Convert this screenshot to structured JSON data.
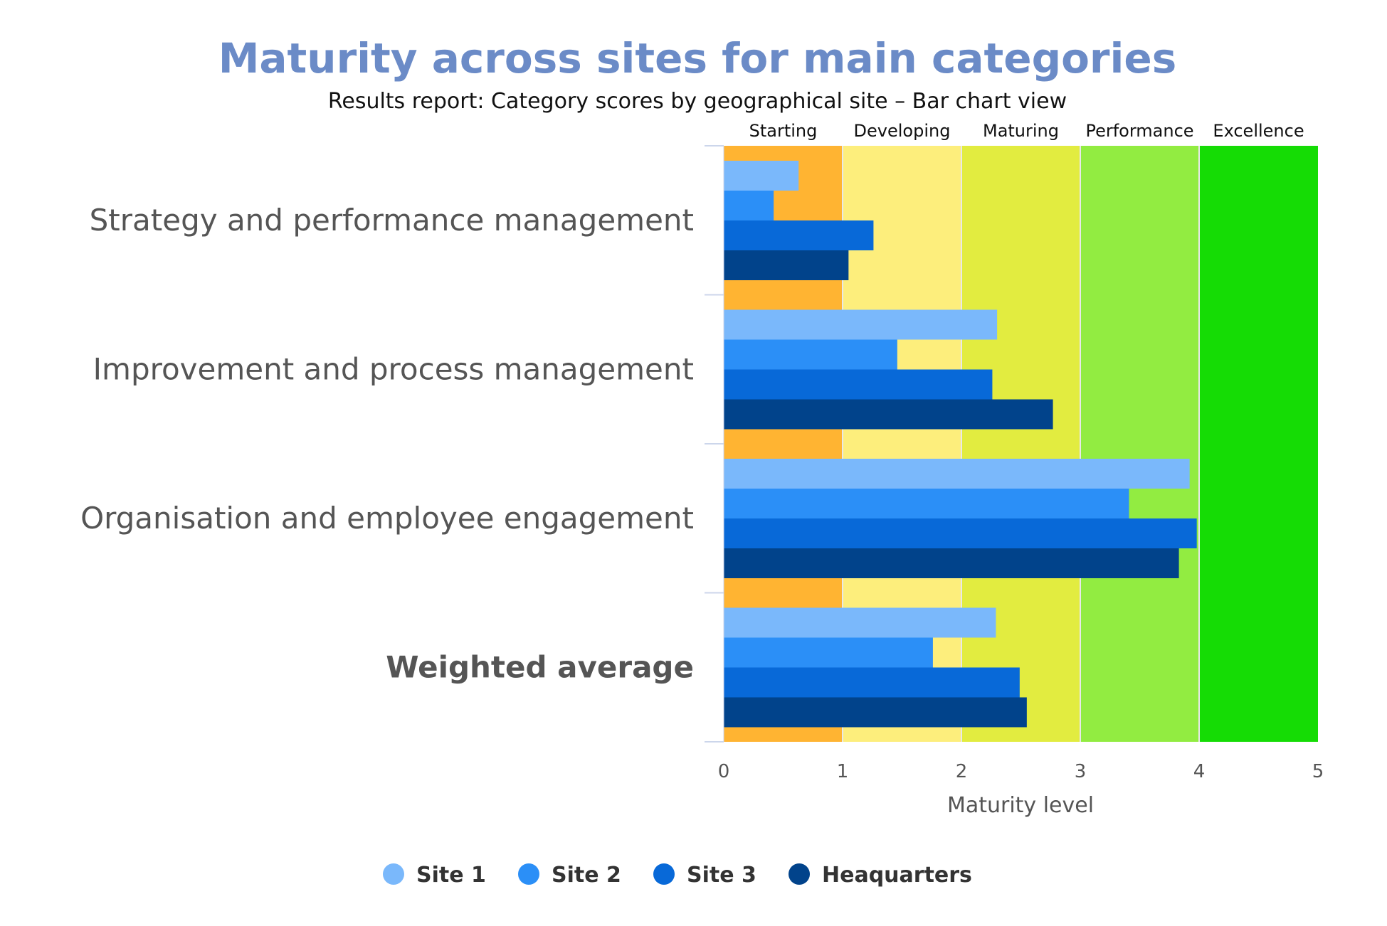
{
  "chart_data": {
    "type": "bar",
    "orientation": "horizontal",
    "title": "Maturity across sites for main categories",
    "subtitle": "Results report: Category scores by geographical site – Bar chart view",
    "xlabel": "Maturity level",
    "ylabel": "",
    "xlim": [
      0,
      5
    ],
    "x_ticks": [
      "0",
      "1",
      "2",
      "3",
      "4",
      "5"
    ],
    "categories": [
      "Strategy and performance management",
      "Improvement and process management",
      "Organisation and employee engagement",
      "Weighted average"
    ],
    "categories_bold": [
      false,
      false,
      false,
      true
    ],
    "series": [
      {
        "name": "Site 1",
        "color": "#7ab8fb",
        "values": [
          0.63,
          2.3,
          3.92,
          2.29
        ]
      },
      {
        "name": "Site 2",
        "color": "#2b8ff7",
        "values": [
          0.42,
          1.46,
          3.41,
          1.76
        ]
      },
      {
        "name": "Site 3",
        "color": "#0869d8",
        "values": [
          1.26,
          2.26,
          3.98,
          2.49
        ]
      },
      {
        "name": "Heaquarters",
        "color": "#01438b",
        "values": [
          1.05,
          2.77,
          3.83,
          2.55
        ]
      }
    ],
    "bands": [
      {
        "label": "Starting",
        "from": 0,
        "to": 1,
        "color": "#ffb432"
      },
      {
        "label": "Developing",
        "from": 1,
        "to": 2,
        "color": "#fdee7c"
      },
      {
        "label": "Maturing",
        "from": 2,
        "to": 3,
        "color": "#e2ec40"
      },
      {
        "label": "Performance",
        "from": 3,
        "to": 4,
        "color": "#92ec41"
      },
      {
        "label": "Excellence",
        "from": 4,
        "to": 5,
        "color": "#15dc05"
      }
    ],
    "legend_position": "bottom",
    "grid": false
  },
  "colors": {
    "title": "#6b8bc7",
    "subtitle": "#111111",
    "category_label": "#555555",
    "tick_label": "#555555",
    "band_label": "#111111",
    "legend_text": "#333333"
  }
}
